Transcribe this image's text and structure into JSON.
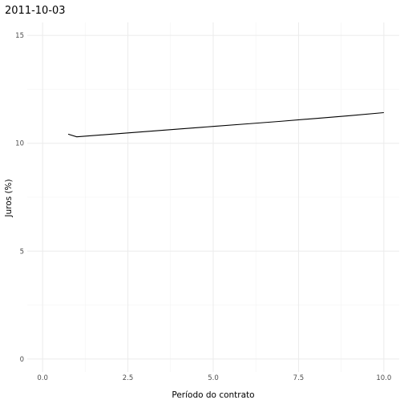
{
  "chart_data": {
    "type": "line",
    "title": "2011-10-03",
    "xlabel": "Período do contrato",
    "ylabel": "Juros (%)",
    "xlim": [
      -0.45,
      10.45
    ],
    "ylim": [
      -0.6,
      15.6
    ],
    "x_ticks": [
      0,
      2.5,
      5,
      7.5,
      10
    ],
    "x_tick_labels": [
      "0.0",
      "2.5",
      "5.0",
      "7.5",
      "10.0"
    ],
    "y_ticks": [
      0,
      5,
      10,
      15
    ],
    "y_tick_labels": [
      "0",
      "5",
      "10",
      "15"
    ],
    "grid": true,
    "series": [
      {
        "color": "#000000",
        "x": [
          0.75,
          1.0,
          2.0,
          3.0,
          4.0,
          5.0,
          6.0,
          7.0,
          8.0,
          9.0,
          10.0
        ],
        "y": [
          10.42,
          10.3,
          10.42,
          10.54,
          10.66,
          10.78,
          10.9,
          11.02,
          11.15,
          11.28,
          11.42
        ]
      }
    ]
  }
}
